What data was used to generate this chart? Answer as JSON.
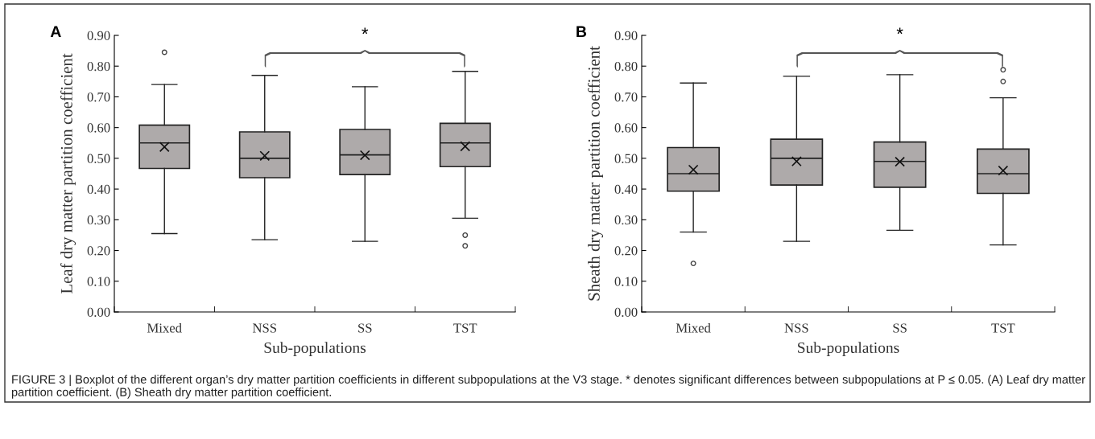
{
  "chart_data": [
    {
      "type": "box",
      "title": "A",
      "xlabel": "Sub-populations",
      "ylabel": "Leaf dry matter partition coefficient",
      "categories": [
        "Mixed",
        "NSS",
        "SS",
        "TST"
      ],
      "color": "#aeaaaa",
      "boxes": [
        {
          "low": 0.255,
          "q1": 0.467,
          "median": 0.55,
          "q3": 0.608,
          "high": 0.74,
          "mean": 0.537,
          "outliers": [
            0.845
          ]
        },
        {
          "low": 0.235,
          "q1": 0.437,
          "median": 0.5,
          "q3": 0.586,
          "high": 0.77,
          "mean": 0.508
        },
        {
          "low": 0.23,
          "q1": 0.447,
          "median": 0.511,
          "q3": 0.594,
          "high": 0.733,
          "mean": 0.51
        },
        {
          "low": 0.305,
          "q1": 0.473,
          "median": 0.55,
          "q3": 0.614,
          "high": 0.783,
          "mean": 0.539,
          "outliers": [
            0.25,
            0.215
          ]
        }
      ],
      "ylim": [
        0,
        0.9
      ],
      "yticks": [
        {
          "value": 0,
          "label": "0.00"
        },
        {
          "value": 0.1,
          "label": "0.10"
        },
        {
          "value": 0.2,
          "label": "0.20"
        },
        {
          "value": 0.3,
          "label": "0.30"
        },
        {
          "value": 0.4,
          "label": "0.40"
        },
        {
          "value": 0.5,
          "label": "0.50"
        },
        {
          "value": 0.6,
          "label": "0.60"
        },
        {
          "value": 0.7,
          "label": "0.70"
        },
        {
          "value": 0.8,
          "label": "0.80"
        },
        {
          "value": 0.9,
          "label": "0.90"
        }
      ],
      "annotations": [
        "*"
      ]
    },
    {
      "type": "box",
      "title": "B",
      "xlabel": "Sub-populations",
      "ylabel": "Sheath dry matter partition coefficient",
      "categories": [
        "Mixed",
        "NSS",
        "SS",
        "TST"
      ],
      "color": "#aeaaaa",
      "boxes": [
        {
          "low": 0.26,
          "q1": 0.393,
          "median": 0.45,
          "q3": 0.535,
          "high": 0.745,
          "mean": 0.463,
          "outliers": [
            0.158
          ]
        },
        {
          "low": 0.23,
          "q1": 0.413,
          "median": 0.5,
          "q3": 0.562,
          "high": 0.767,
          "mean": 0.49
        },
        {
          "low": 0.266,
          "q1": 0.406,
          "median": 0.49,
          "q3": 0.553,
          "high": 0.772,
          "mean": 0.489
        },
        {
          "low": 0.218,
          "q1": 0.386,
          "median": 0.45,
          "q3": 0.53,
          "high": 0.697,
          "mean": 0.46,
          "outliers": [
            0.75,
            0.788
          ]
        }
      ],
      "ylim": [
        0,
        0.9
      ],
      "yticks": [
        {
          "value": 0,
          "label": "0.00"
        },
        {
          "value": 0.1,
          "label": "0.10"
        },
        {
          "value": 0.2,
          "label": "0.20"
        },
        {
          "value": 0.3,
          "label": "0.30"
        },
        {
          "value": 0.4,
          "label": "0.40"
        },
        {
          "value": 0.5,
          "label": "0.50"
        },
        {
          "value": 0.6,
          "label": "0.60"
        },
        {
          "value": 0.7,
          "label": "0.70"
        },
        {
          "value": 0.8,
          "label": "0.80"
        },
        {
          "value": 0.9,
          "label": "0.90"
        }
      ],
      "annotations": [
        "*",
        "FIGURE 3 | Boxplot of the different organ’s dry matter partition coefficients in different subpopulations at the V3 stage. * denotes significant differences between subpopulations at P ≤ 0.05. (A) Leaf dry matter partition coefficient. (B) Sheath dry matter partition coefficient."
      ]
    }
  ]
}
